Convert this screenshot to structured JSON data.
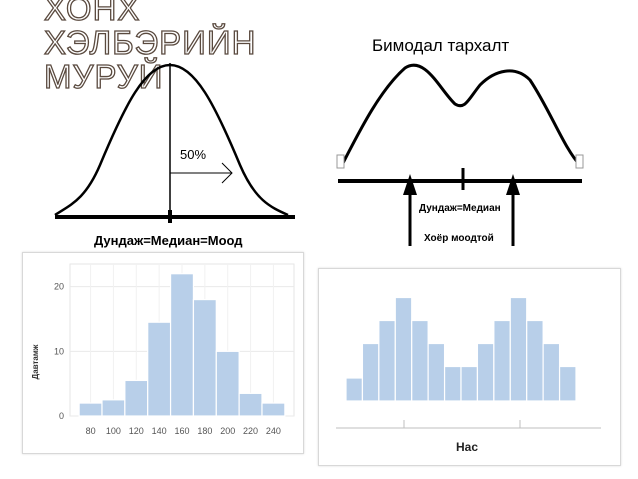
{
  "slide": {
    "title_lines": [
      "ХОНХ",
      "ХЭЛБЭРИЙН",
      "МУРУЙ"
    ],
    "bimodal_title": "Бимодал тархалт",
    "bell": {
      "percent_label": "50%",
      "caption": "Дундаж=Медиан=Моод"
    },
    "bimodal": {
      "center_label": "Дундаж=Медиан",
      "modes_label": "Хоёр моодтой"
    }
  },
  "colors": {
    "title_outline": "#5a4a3f",
    "bar_fill": "#b8cfe9",
    "bar_stroke": "#ffffff",
    "frame_border": "#d8d8d8"
  },
  "chart_data": [
    {
      "type": "bar",
      "title": "",
      "ylabel": "Давтамж",
      "xlabel": "",
      "categories": [
        "70-90",
        "90-110",
        "110-130",
        "130-150",
        "150-170",
        "170-190",
        "190-210",
        "210-230",
        "230-250"
      ],
      "values": [
        2,
        2.5,
        5.5,
        14.5,
        22,
        18,
        10,
        3.5,
        2
      ],
      "x_tick_labels": [
        "80",
        "100",
        "120",
        "140",
        "160",
        "180",
        "200",
        "220",
        "240"
      ],
      "x_tick_values": [
        80,
        100,
        120,
        140,
        160,
        180,
        200,
        220,
        240
      ],
      "bin_edges": [
        70,
        90,
        110,
        130,
        150,
        170,
        190,
        210,
        230,
        250
      ],
      "y_tick_labels": [
        "0",
        "10",
        "20"
      ],
      "y_tick_values": [
        0,
        10,
        20
      ],
      "xlim": [
        62,
        258
      ],
      "ylim": [
        0,
        23.5
      ],
      "grid": true
    },
    {
      "type": "bar",
      "title": "",
      "xlabel": "Нас",
      "ylabel": "",
      "values": [
        2,
        5,
        7,
        9,
        7,
        5,
        3,
        3,
        5,
        7,
        9,
        7,
        5,
        3
      ],
      "ylim": [
        0,
        10
      ],
      "grid": false
    }
  ]
}
